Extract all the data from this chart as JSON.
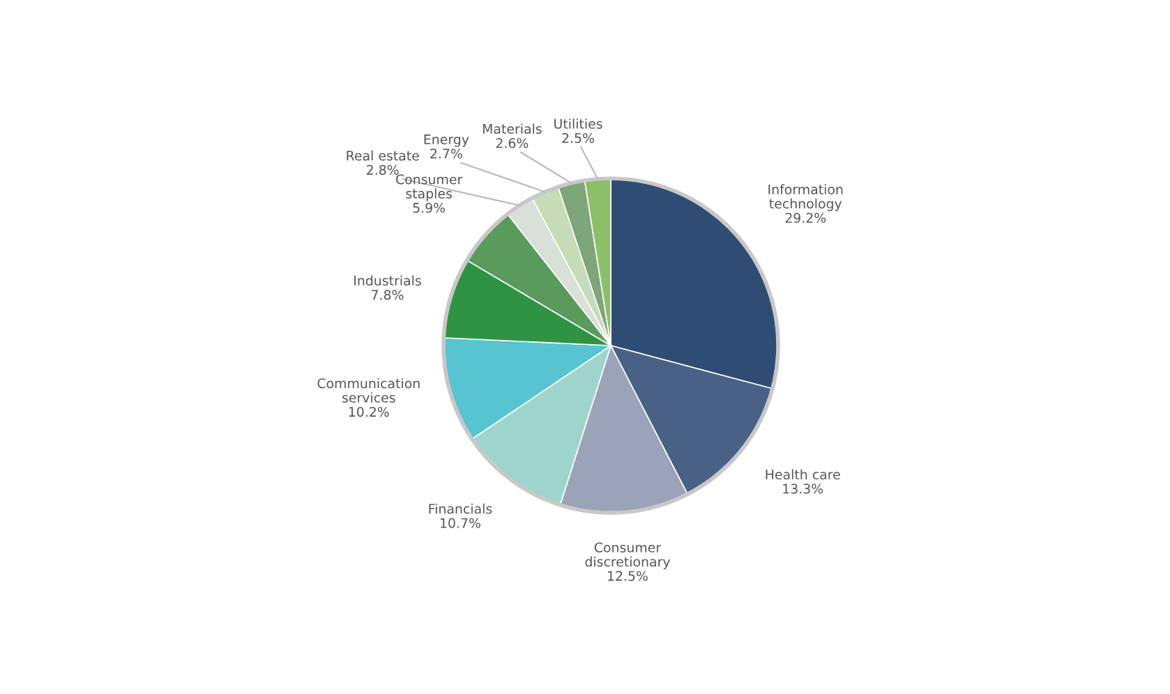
{
  "chart_data": {
    "type": "pie",
    "categories": [
      "Information\ntechnology",
      "Health care",
      "Consumer\ndiscretionary",
      "Financials",
      "Communication\nservices",
      "Industrials",
      "Consumer\nstaples",
      "Real estate",
      "Energy",
      "Materials",
      "Utilities"
    ],
    "values": [
      29.2,
      13.3,
      12.5,
      10.7,
      10.2,
      7.8,
      5.9,
      2.8,
      2.7,
      2.6,
      2.5
    ],
    "value_labels": [
      "29.2%",
      "13.3%",
      "12.5%",
      "10.7%",
      "10.2%",
      "7.8%",
      "5.9%",
      "2.8%",
      "2.7%",
      "2.6%",
      "2.5%"
    ],
    "colors": [
      "#2f4d74",
      "#4a6186",
      "#9aa3b8",
      "#9fd4cc",
      "#58c3d1",
      "#2e9444",
      "#5a9a5c",
      "#d8e0d8",
      "#c6dcb8",
      "#7fa57a",
      "#8bbf6a"
    ],
    "legend": false
  }
}
